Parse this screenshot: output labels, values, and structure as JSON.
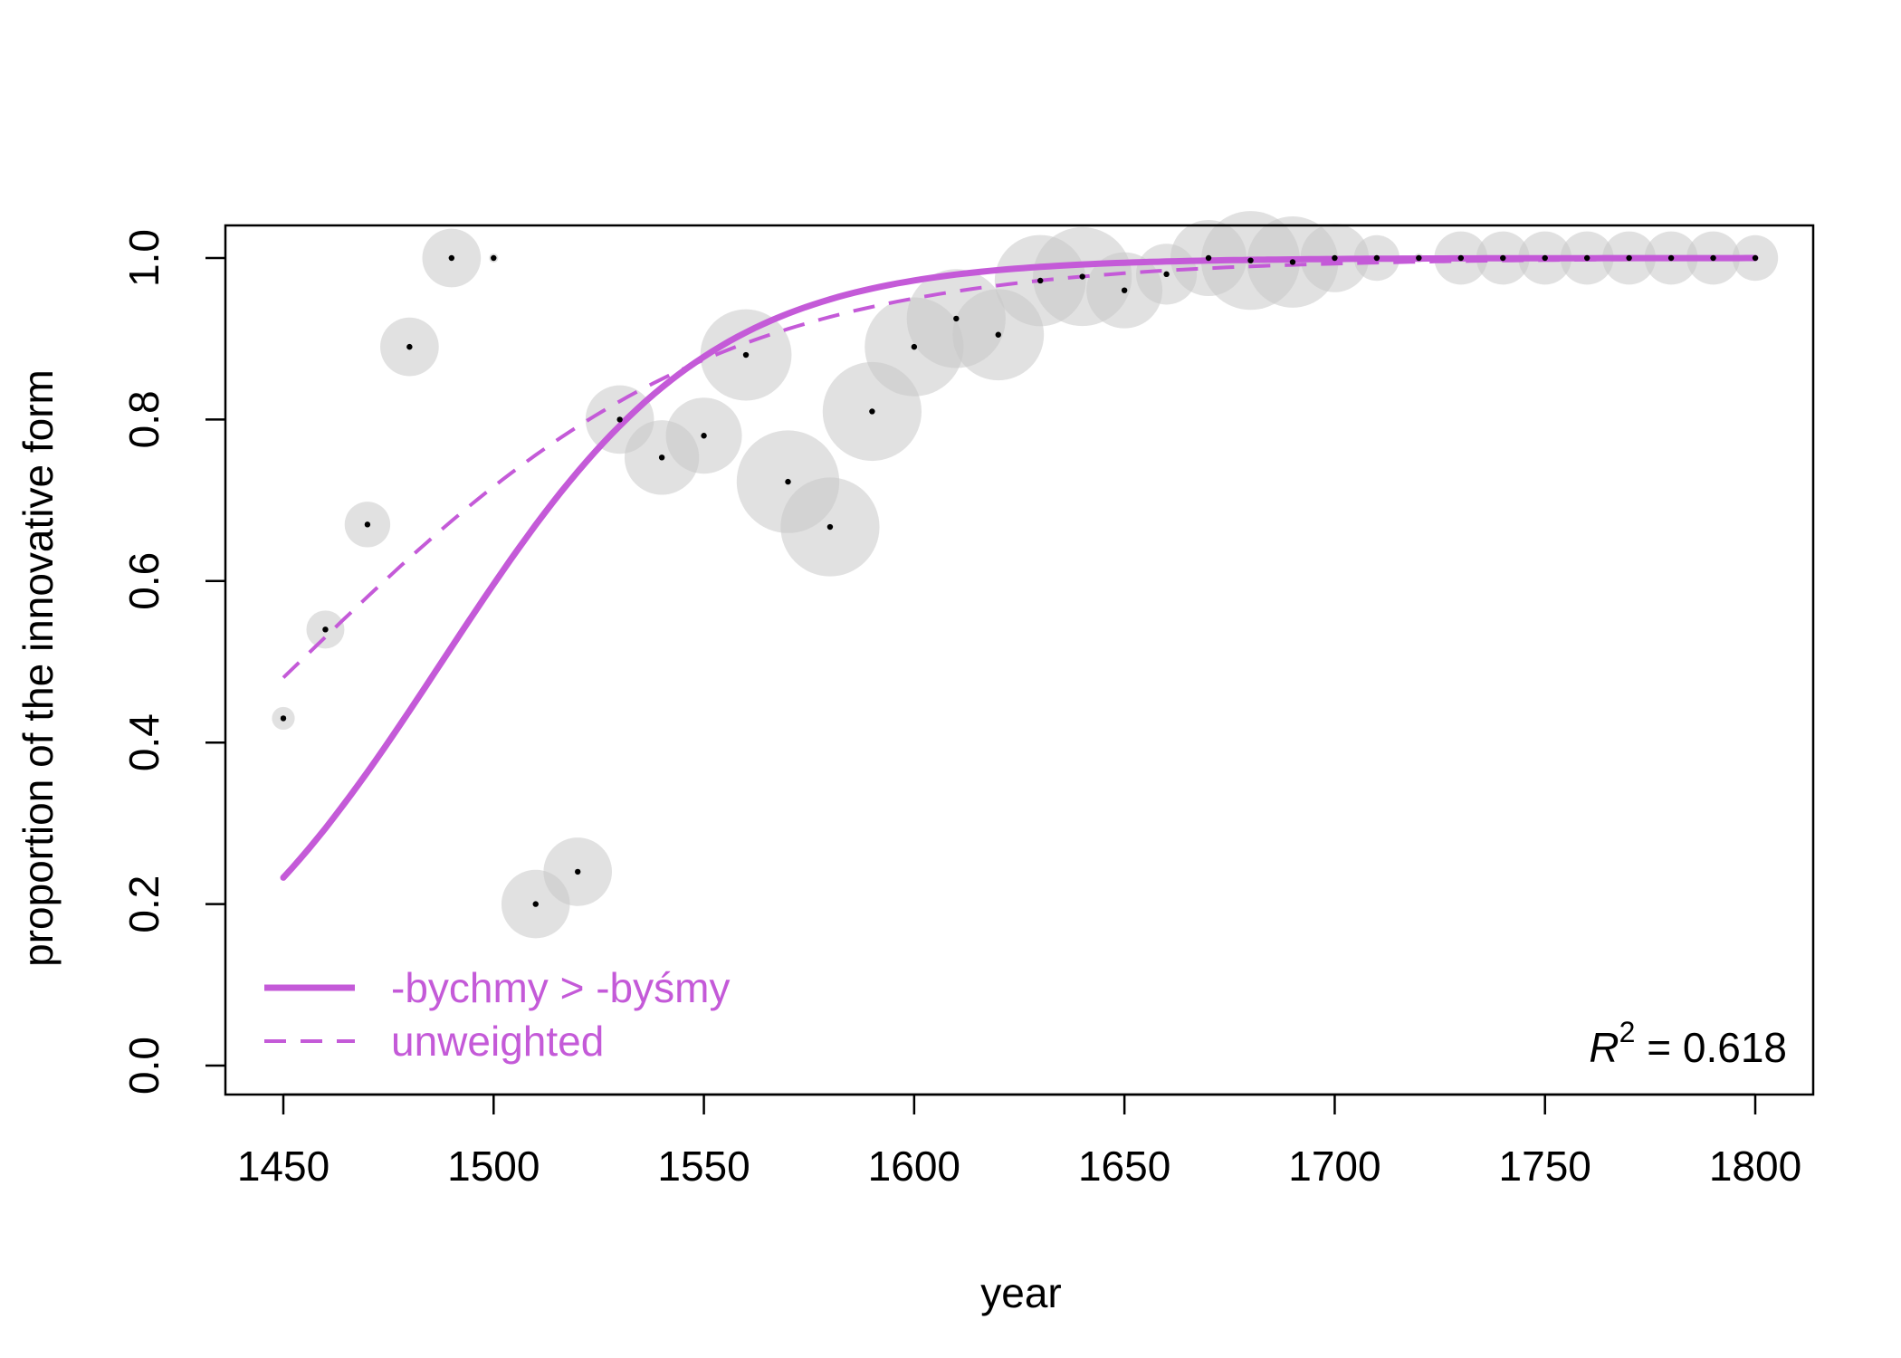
{
  "chart_data": {
    "type": "scatter",
    "title": "",
    "xlabel": "year",
    "ylabel": "proportion of the innovative form",
    "xlim": [
      1450,
      1800
    ],
    "ylim": [
      0,
      1
    ],
    "xticks": [
      1450,
      1500,
      1550,
      1600,
      1650,
      1700,
      1750,
      1800
    ],
    "yticks": [
      0.0,
      0.2,
      0.4,
      0.6,
      0.8,
      1.0
    ],
    "xtick_labels": [
      "1450",
      "1500",
      "1550",
      "1600",
      "1650",
      "1700",
      "1750",
      "1800"
    ],
    "ytick_labels": [
      "0.0",
      "0.2",
      "0.4",
      "0.6",
      "0.8",
      "1.0"
    ],
    "points": [
      {
        "x": 1450,
        "y": 0.43,
        "size": 0.3
      },
      {
        "x": 1460,
        "y": 0.54,
        "size": 0.5
      },
      {
        "x": 1470,
        "y": 0.67,
        "size": 0.6
      },
      {
        "x": 1480,
        "y": 0.89,
        "size": 0.77
      },
      {
        "x": 1490,
        "y": 1.0,
        "size": 0.77
      },
      {
        "x": 1500,
        "y": 1.0,
        "size": 0.12
      },
      {
        "x": 1510,
        "y": 0.2,
        "size": 0.9
      },
      {
        "x": 1520,
        "y": 0.24,
        "size": 0.9
      },
      {
        "x": 1530,
        "y": 0.8,
        "size": 0.9
      },
      {
        "x": 1540,
        "y": 0.753,
        "size": 0.98
      },
      {
        "x": 1550,
        "y": 0.78,
        "size": 1.0
      },
      {
        "x": 1560,
        "y": 0.88,
        "size": 1.2
      },
      {
        "x": 1570,
        "y": 0.723,
        "size": 1.35
      },
      {
        "x": 1580,
        "y": 0.667,
        "size": 1.3
      },
      {
        "x": 1590,
        "y": 0.81,
        "size": 1.3
      },
      {
        "x": 1600,
        "y": 0.89,
        "size": 1.3
      },
      {
        "x": 1610,
        "y": 0.925,
        "size": 1.3
      },
      {
        "x": 1620,
        "y": 0.905,
        "size": 1.2
      },
      {
        "x": 1630,
        "y": 0.972,
        "size": 1.2
      },
      {
        "x": 1640,
        "y": 0.977,
        "size": 1.3
      },
      {
        "x": 1650,
        "y": 0.96,
        "size": 1.0
      },
      {
        "x": 1660,
        "y": 0.98,
        "size": 0.8
      },
      {
        "x": 1670,
        "y": 1.0,
        "size": 1.0
      },
      {
        "x": 1680,
        "y": 0.997,
        "size": 1.3
      },
      {
        "x": 1690,
        "y": 0.995,
        "size": 1.2
      },
      {
        "x": 1700,
        "y": 1.0,
        "size": 0.9
      },
      {
        "x": 1710,
        "y": 1.0,
        "size": 0.6
      },
      {
        "x": 1720,
        "y": 1.0,
        "size": 0.12
      },
      {
        "x": 1730,
        "y": 1.0,
        "size": 0.7
      },
      {
        "x": 1740,
        "y": 1.0,
        "size": 0.7
      },
      {
        "x": 1750,
        "y": 1.0,
        "size": 0.7
      },
      {
        "x": 1760,
        "y": 1.0,
        "size": 0.7
      },
      {
        "x": 1770,
        "y": 1.0,
        "size": 0.7
      },
      {
        "x": 1780,
        "y": 1.0,
        "size": 0.7
      },
      {
        "x": 1790,
        "y": 1.0,
        "size": 0.7
      },
      {
        "x": 1800,
        "y": 1.0,
        "size": 0.6
      }
    ],
    "series": [
      {
        "name": "-bychmy > -byśmy",
        "style": "solid",
        "model": "logistic",
        "slope": 0.03165,
        "midpoint": 1487.7
      },
      {
        "name": "unweighted",
        "style": "dashed",
        "model": "logistic",
        "slope": 0.02016,
        "midpoint": 1453.9
      }
    ],
    "legend_position": "bottom-left",
    "annotation": {
      "label": "R",
      "superscript": "2",
      "text": " = 0.618"
    }
  },
  "colors": {
    "fit_line": "#c45ad8",
    "bubble": "#c8c8c8",
    "point": "#000000",
    "axis": "#000000"
  }
}
